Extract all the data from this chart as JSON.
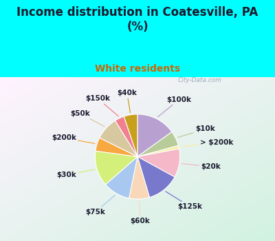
{
  "title": "Income distribution in Coatesville, PA\n(%)",
  "subtitle": "White residents",
  "background_color": "#00FFFF",
  "slices": [
    {
      "label": "$100k",
      "value": 14.5,
      "color": "#b8a0d0"
    },
    {
      "label": "$10k",
      "value": 5.5,
      "color": "#b8cc9a"
    },
    {
      "label": "> $200k",
      "value": 1.2,
      "color": "#f5f0a0"
    },
    {
      "label": "$20k",
      "value": 10.5,
      "color": "#f4b8c8"
    },
    {
      "label": "$125k",
      "value": 12.0,
      "color": "#7878cc"
    },
    {
      "label": "$60k",
      "value": 7.5,
      "color": "#f8d8b8"
    },
    {
      "label": "$75k",
      "value": 10.0,
      "color": "#a8c8f0"
    },
    {
      "label": "$30k",
      "value": 13.0,
      "color": "#d4f07a"
    },
    {
      "label": "$200k",
      "value": 5.0,
      "color": "#f8a840"
    },
    {
      "label": "$50k",
      "value": 8.5,
      "color": "#d8c8a0"
    },
    {
      "label": "$150k",
      "value": 3.5,
      "color": "#f08090"
    },
    {
      "label": "$40k",
      "value": 5.0,
      "color": "#c8a020"
    }
  ],
  "label_fontsize": 7.5,
  "title_fontsize": 12,
  "subtitle_fontsize": 10,
  "subtitle_color": "#cc6600",
  "title_color": "#1a1a2e",
  "watermark": "City-Data.com"
}
